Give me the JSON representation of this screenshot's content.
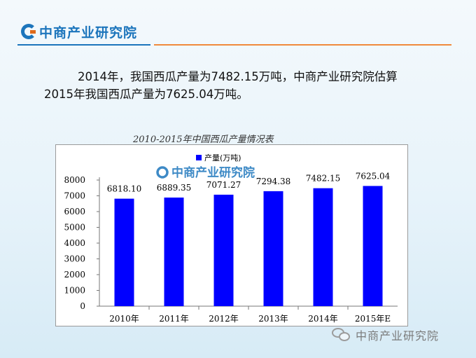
{
  "header": {
    "logo_text": "中商产业研究院"
  },
  "intro": {
    "line1": "2014年，我国西瓜产量为7482.15万吨，中商产业研究院估算",
    "line2": "2015年我国西瓜产量为7625.04万吨。"
  },
  "chart_data": {
    "type": "bar",
    "title": "2010-2015年中国西瓜产量情况表",
    "categories": [
      "2010年",
      "2011年",
      "2012年",
      "2013年",
      "2014年",
      "2015年E"
    ],
    "series": [
      {
        "name": "产量(万吨)",
        "values": [
          6818.1,
          6889.35,
          7071.27,
          7294.38,
          7482.15,
          7625.04
        ]
      }
    ],
    "data_labels": [
      "6818.10",
      "6889.35",
      "7071.27",
      "7294.38",
      "7482.15",
      "7625.04"
    ],
    "ylim": [
      0,
      8000
    ],
    "yticks": [
      0,
      1000,
      2000,
      3000,
      4000,
      5000,
      6000,
      7000,
      8000
    ],
    "xlabel": "",
    "ylabel": "",
    "legend_position": "top-left",
    "grid": false,
    "bar_color": "#0000ff",
    "watermark_text": "中商产业研究院"
  },
  "footer": {
    "text": "中商产业研究院"
  },
  "colors": {
    "brand_blue": "#1c75bc",
    "brand_orange": "#f08a3c"
  },
  "icons": {
    "logo": "brand-logo-icon",
    "wechat": "wechat-icon"
  }
}
